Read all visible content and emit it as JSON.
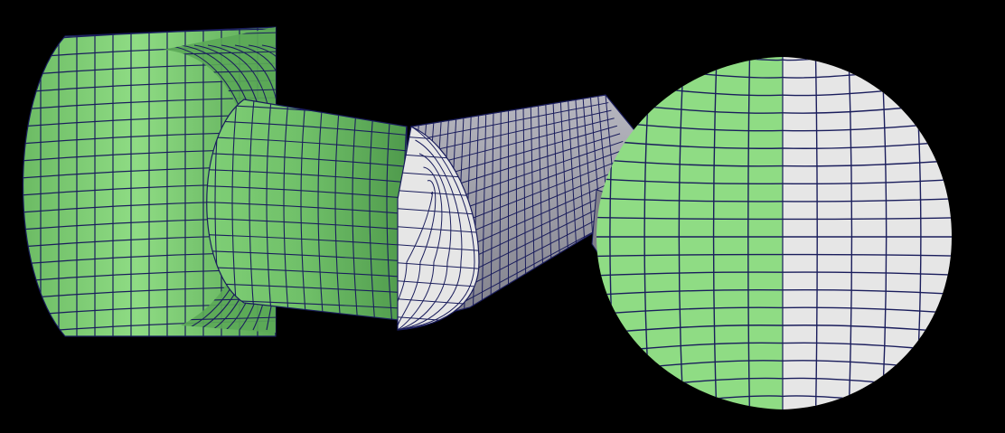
{
  "figure": {
    "background": "#000000",
    "mesh_color": "#1a1d5c",
    "green_light": "#8fdc84",
    "green_mid": "#6fbf68",
    "green_dark": "#4f9a4c",
    "grey_light": "#e6e6e6",
    "grey_mid": "#bdbdc4",
    "grey_dark": "#8f8f99"
  },
  "parts": [
    {
      "name": "large-cylinder-segment",
      "material": "green"
    },
    {
      "name": "middle-cylinder-segment",
      "material": "green"
    },
    {
      "name": "sectioned-shaft-segment",
      "material": "grey"
    },
    {
      "name": "cross-section-disk",
      "materials": [
        "green",
        "grey"
      ]
    }
  ]
}
